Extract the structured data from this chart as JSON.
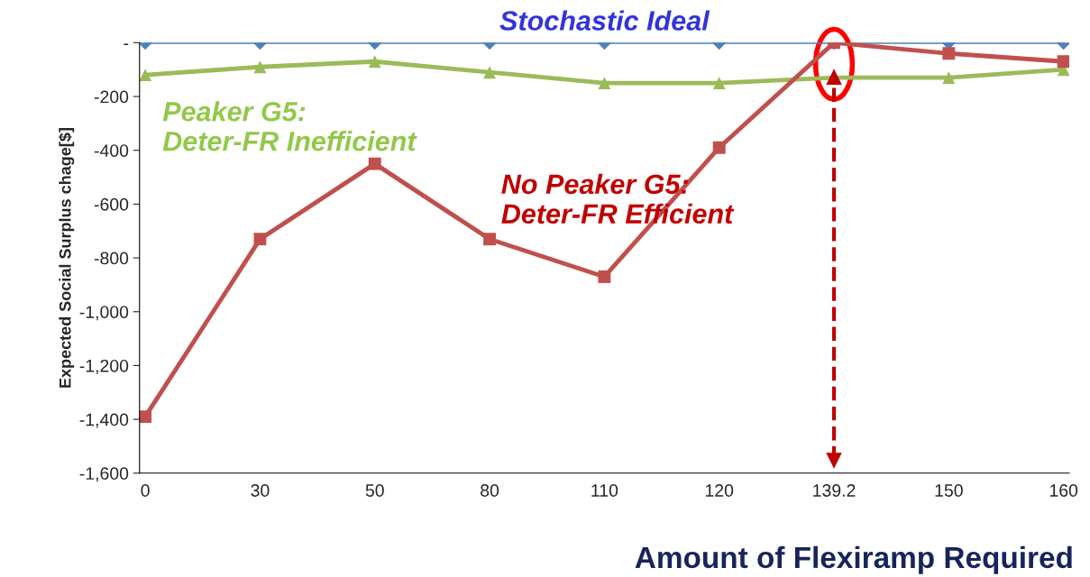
{
  "chart_data": {
    "type": "line",
    "xlabel": "Amount of Flexiramp Required",
    "ylabel": "Expected Social Surplus chage[$]",
    "categories": [
      "0",
      "30",
      "50",
      "80",
      "110",
      "120",
      "139.2",
      "150",
      "160"
    ],
    "series": [
      {
        "name": "Stochastic Ideal",
        "color": "#4f81bd",
        "marker": "diamond",
        "values": [
          0,
          0,
          0,
          0,
          0,
          0,
          0,
          0,
          0
        ]
      },
      {
        "name": "Peaker G5:\nDeter-FR Inefficient",
        "color": "#9bbb59",
        "marker": "triangle",
        "values": [
          -120,
          -90,
          -70,
          -110,
          -150,
          -150,
          -130,
          -130,
          -100
        ]
      },
      {
        "name": "No Peaker G5:\nDeter-FR Efficient",
        "color": "#c0504d",
        "marker": "square",
        "values": [
          -1390,
          -730,
          -450,
          -730,
          -870,
          -390,
          0,
          -40,
          -70
        ]
      }
    ],
    "ylim": [
      -1600,
      0
    ],
    "yticks": [
      {
        "value": 0,
        "label": "-"
      },
      {
        "value": -200,
        "label": "-200"
      },
      {
        "value": -400,
        "label": "-400"
      },
      {
        "value": -600,
        "label": "-600"
      },
      {
        "value": -800,
        "label": "-800"
      },
      {
        "value": -1000,
        "label": "-1,000"
      },
      {
        "value": -1200,
        "label": "-1,200"
      },
      {
        "value": -1400,
        "label": "-1,400"
      },
      {
        "value": -1600,
        "label": "-1,600"
      }
    ],
    "ref_lines": [
      {
        "axis": "x",
        "value": "139.2",
        "color": "#c00000",
        "line_style": "dashed"
      }
    ],
    "grid": false,
    "legend": false
  }
}
